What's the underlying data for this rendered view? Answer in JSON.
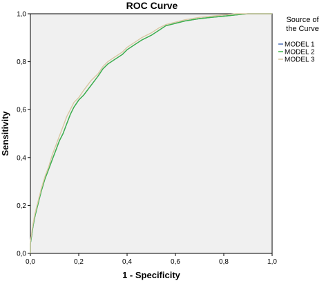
{
  "chart_data": {
    "type": "line",
    "title": "ROC Curve",
    "xlabel": "1 - Specificity",
    "ylabel": "Sensitivity",
    "xlim": [
      0,
      1
    ],
    "ylim": [
      0,
      1
    ],
    "xticks": [
      "0,0",
      "0,2",
      "0,4",
      "0,6",
      "0,8",
      "1,0"
    ],
    "yticks": [
      "0,0",
      "0,2",
      "0,4",
      "0,6",
      "0,8",
      "1,0"
    ],
    "grid": false,
    "legend": {
      "title_lines": [
        "Source of",
        "the Curve"
      ],
      "placement": "right"
    },
    "series": [
      {
        "name": "MODEL 1",
        "color": "#4a6fb5",
        "x": [
          0.0,
          0.0,
          0.006,
          0.012,
          0.02,
          0.03,
          0.045,
          0.06,
          0.075,
          0.09,
          0.105,
          0.12,
          0.135,
          0.15,
          0.165,
          0.18,
          0.2,
          0.22,
          0.25,
          0.28,
          0.3,
          0.32,
          0.35,
          0.38,
          0.4,
          0.43,
          0.46,
          0.5,
          0.53,
          0.56,
          0.6,
          0.64,
          0.7,
          0.75,
          0.8,
          0.85,
          0.9,
          1.0
        ],
        "y": [
          0.0,
          0.04,
          0.08,
          0.12,
          0.16,
          0.2,
          0.26,
          0.31,
          0.35,
          0.39,
          0.43,
          0.47,
          0.5,
          0.54,
          0.58,
          0.61,
          0.64,
          0.66,
          0.7,
          0.74,
          0.77,
          0.79,
          0.81,
          0.83,
          0.85,
          0.87,
          0.89,
          0.91,
          0.93,
          0.95,
          0.96,
          0.97,
          0.98,
          0.985,
          0.99,
          0.995,
          1.0,
          1.0
        ]
      },
      {
        "name": "MODEL 2",
        "color": "#3fb548",
        "x": [
          0.0,
          0.0,
          0.006,
          0.012,
          0.02,
          0.03,
          0.045,
          0.06,
          0.075,
          0.09,
          0.105,
          0.12,
          0.135,
          0.15,
          0.165,
          0.18,
          0.2,
          0.22,
          0.25,
          0.28,
          0.3,
          0.32,
          0.35,
          0.38,
          0.4,
          0.43,
          0.46,
          0.5,
          0.53,
          0.56,
          0.6,
          0.64,
          0.7,
          0.75,
          0.8,
          0.85,
          0.9,
          1.0
        ],
        "y": [
          0.0,
          0.04,
          0.08,
          0.12,
          0.16,
          0.2,
          0.26,
          0.31,
          0.35,
          0.39,
          0.43,
          0.47,
          0.5,
          0.54,
          0.58,
          0.61,
          0.64,
          0.66,
          0.7,
          0.74,
          0.77,
          0.79,
          0.81,
          0.83,
          0.85,
          0.87,
          0.89,
          0.91,
          0.93,
          0.95,
          0.96,
          0.97,
          0.98,
          0.985,
          0.99,
          0.995,
          1.0,
          1.0
        ]
      },
      {
        "name": "MODEL 3",
        "color": "#d8c8a2",
        "x": [
          0.0,
          0.0,
          0.006,
          0.012,
          0.02,
          0.03,
          0.045,
          0.06,
          0.075,
          0.09,
          0.105,
          0.12,
          0.135,
          0.15,
          0.165,
          0.18,
          0.2,
          0.22,
          0.25,
          0.28,
          0.3,
          0.32,
          0.35,
          0.38,
          0.4,
          0.43,
          0.46,
          0.5,
          0.53,
          0.56,
          0.6,
          0.64,
          0.7,
          0.75,
          0.8,
          0.85,
          0.9,
          1.0
        ],
        "y": [
          0.0,
          0.05,
          0.09,
          0.13,
          0.17,
          0.21,
          0.27,
          0.32,
          0.36,
          0.41,
          0.45,
          0.49,
          0.53,
          0.57,
          0.6,
          0.63,
          0.65,
          0.68,
          0.72,
          0.75,
          0.78,
          0.8,
          0.82,
          0.84,
          0.86,
          0.88,
          0.9,
          0.92,
          0.94,
          0.955,
          0.965,
          0.975,
          0.985,
          0.99,
          0.995,
          1.0,
          1.0,
          1.0
        ]
      }
    ]
  }
}
